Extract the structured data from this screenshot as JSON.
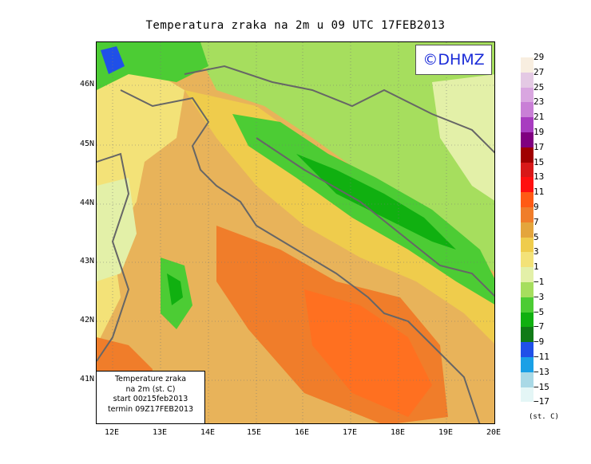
{
  "title": "Temperatura zraka na 2m u 09 UTC 17FEB2013",
  "logo": "©DHMZ",
  "info": {
    "line1": "Temperature zraka",
    "line2": "na 2m (st. C)",
    "line3": "start 00z15feb2013",
    "line4": "termin 09Z17FEB2013"
  },
  "lat_labels": [
    "46N",
    "45N",
    "44N",
    "43N",
    "42N",
    "41N"
  ],
  "lon_labels": [
    "12E",
    "13E",
    "14E",
    "15E",
    "16E",
    "17E",
    "18E",
    "19E",
    "20E"
  ],
  "legend": {
    "labels": [
      "29",
      "27",
      "25",
      "23",
      "21",
      "19",
      "17",
      "15",
      "13",
      "11",
      "9",
      "7",
      "5",
      "3",
      "1",
      "−1",
      "−3",
      "−5",
      "−7",
      "−9",
      "−11",
      "−13",
      "−15",
      "−17"
    ],
    "colors": [
      "#f8eee0",
      "#e4c9e4",
      "#d9a6e0",
      "#c97fd6",
      "#a83cc0",
      "#800080",
      "#a00000",
      "#d81818",
      "#ff1010",
      "#ff5a14",
      "#f07d2a",
      "#e4a53c",
      "#efcc4c",
      "#f3e278",
      "#e3f0a8",
      "#a6de5e",
      "#4ccc34",
      "#10b010",
      "#117b17",
      "#2050e8",
      "#1aa0e6",
      "#a9d9e6",
      "#e4f6f6"
    ],
    "unit": "(st. C)"
  },
  "map_colors": {
    "sea_warm": "#e8b35a",
    "sea_hot": "#f07d2a",
    "orange_core": "#ff7020",
    "yellow": "#efcc4c",
    "pale": "#f3e278",
    "cream": "#e3f0a8",
    "green_light": "#a6de5e",
    "green": "#4ccc34",
    "green_dark": "#10b010",
    "green_deep": "#117b17",
    "blue": "#2050e8",
    "border": "#666666"
  }
}
